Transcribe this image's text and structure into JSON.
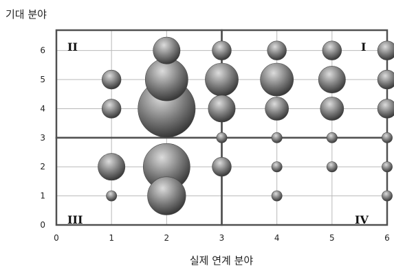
{
  "chart_data": {
    "type": "scatter",
    "title": "",
    "xlabel": "실제 연계 분야",
    "ylabel": "기대 분야",
    "xlim": [
      0,
      6
    ],
    "ylim": [
      0,
      6.7
    ],
    "x_ticks": [
      "0",
      "1",
      "2",
      "3",
      "4",
      "5",
      "6"
    ],
    "y_ticks": [
      "0",
      "1",
      "2",
      "3",
      "4",
      "5",
      "6"
    ],
    "grid": true,
    "divider": {
      "x": 3,
      "y": 3
    },
    "quadrant_labels": {
      "top_left": "II",
      "top_right": "I",
      "bottom_left": "III",
      "bottom_right": "IV"
    },
    "points": [
      {
        "x": 2,
        "y": 6,
        "size": 2
      },
      {
        "x": 3,
        "y": 6,
        "size": 1
      },
      {
        "x": 4,
        "y": 6,
        "size": 1
      },
      {
        "x": 5,
        "y": 6,
        "size": 1
      },
      {
        "x": 6,
        "y": 6,
        "size": 1
      },
      {
        "x": 1,
        "y": 5,
        "size": 1
      },
      {
        "x": 2,
        "y": 5,
        "size": 5
      },
      {
        "x": 3,
        "y": 5,
        "size": 3
      },
      {
        "x": 4,
        "y": 5,
        "size": 3
      },
      {
        "x": 5,
        "y": 5,
        "size": 2
      },
      {
        "x": 6,
        "y": 5,
        "size": 1
      },
      {
        "x": 1,
        "y": 4,
        "size": 1
      },
      {
        "x": 2,
        "y": 4,
        "size": 9
      },
      {
        "x": 3,
        "y": 4,
        "size": 2
      },
      {
        "x": 4,
        "y": 4,
        "size": 1.5
      },
      {
        "x": 5,
        "y": 4,
        "size": 1.5
      },
      {
        "x": 6,
        "y": 4,
        "size": 1
      },
      {
        "x": 3,
        "y": 3,
        "size": 0.3
      },
      {
        "x": 4,
        "y": 3,
        "size": 0.3
      },
      {
        "x": 5,
        "y": 3,
        "size": 0.3
      },
      {
        "x": 6,
        "y": 3,
        "size": 0.3
      },
      {
        "x": 1,
        "y": 2,
        "size": 2
      },
      {
        "x": 2,
        "y": 2,
        "size": 6
      },
      {
        "x": 3,
        "y": 2,
        "size": 1
      },
      {
        "x": 4,
        "y": 2,
        "size": 0.3
      },
      {
        "x": 5,
        "y": 2,
        "size": 0.3
      },
      {
        "x": 6,
        "y": 2,
        "size": 0.3
      },
      {
        "x": 1,
        "y": 1,
        "size": 0.3
      },
      {
        "x": 2,
        "y": 1,
        "size": 4
      },
      {
        "x": 4,
        "y": 1,
        "size": 0.3
      },
      {
        "x": 6,
        "y": 1,
        "size": 0.3
      }
    ],
    "colors": {
      "bubble_light": "#dcdcdc",
      "bubble_mid": "#7a7a7a",
      "bubble_dark": "#2e2e2e",
      "grid": "#b8b8b8",
      "divider": "#505050"
    }
  }
}
